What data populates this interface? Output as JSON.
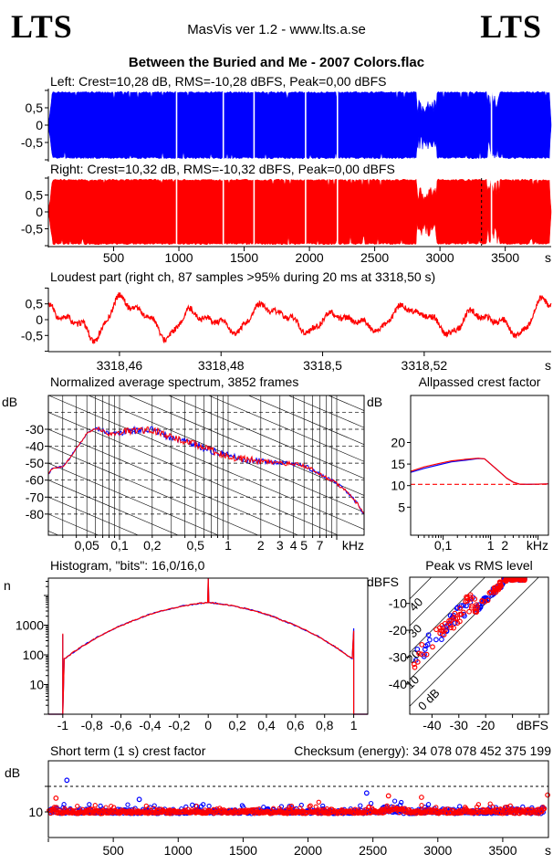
{
  "header": {
    "logo_left": "LTS",
    "logo_right": "LTS",
    "version_line": "MasVis ver 1.2 - www.lts.a.se"
  },
  "title": "Between the Buried and Me - 2007 Colors.flac",
  "colors": {
    "left_channel": "#0000ff",
    "right_channel": "#ff0000",
    "axis": "#000000",
    "background": "#ffffff"
  },
  "chart_data": [
    {
      "id": "waveform-left",
      "type": "waveform",
      "channel": "Left",
      "label": "Left: Crest=10,28 dB, RMS=-10,28 dBFS, Peak=0,00 dBFS",
      "crest_db": "10,28",
      "rms_dbfs": "-10,28",
      "peak_dbfs": "0,00",
      "color": "#0000ff",
      "seed": 11,
      "duration_s": 3852,
      "peak_amplitude": 0.97,
      "yticks": [
        {
          "v": 0.5,
          "label": "0,5"
        },
        {
          "v": 0,
          "label": "0"
        },
        {
          "v": -0.5,
          "label": "-0,5"
        }
      ],
      "gaps_s": [
        982,
        1340,
        1576,
        1971,
        2215,
        3395
      ],
      "quiet_regions": [
        {
          "start_s": 2818,
          "end_s": 2972,
          "amp": 0.62
        },
        {
          "start_s": 3356,
          "end_s": 3454,
          "amp": 0.85
        }
      ],
      "fade_in_s": 28,
      "fade_out_start_s": 3840
    },
    {
      "id": "waveform-right",
      "type": "waveform",
      "channel": "Right",
      "label": "Right: Crest=10,32 dB, RMS=-10,32 dBFS, Peak=0,00 dBFS",
      "crest_db": "10,32",
      "rms_dbfs": "-10,32",
      "peak_dbfs": "0,00",
      "color": "#ff0000",
      "seed": 22,
      "duration_s": 3852,
      "peak_amplitude": 0.97,
      "marker_s": 3318.5,
      "yticks": [
        {
          "v": 0.5,
          "label": "0,5"
        },
        {
          "v": 0,
          "label": "0"
        },
        {
          "v": -0.5,
          "label": "-0,5"
        }
      ],
      "xticks": [
        {
          "v": 500,
          "label": "500"
        },
        {
          "v": 1000,
          "label": "1000"
        },
        {
          "v": 1500,
          "label": "1500"
        },
        {
          "v": 2000,
          "label": "2000"
        },
        {
          "v": 2500,
          "label": "2500"
        },
        {
          "v": 3000,
          "label": "3000"
        },
        {
          "v": 3500,
          "label": "3500"
        }
      ],
      "xunit": "s",
      "gaps_s": [
        982,
        1340,
        1576,
        1971,
        2215,
        3395
      ],
      "quiet_regions": [
        {
          "start_s": 2818,
          "end_s": 2972,
          "amp": 0.62
        },
        {
          "start_s": 3356,
          "end_s": 3454,
          "amp": 0.85
        }
      ],
      "fade_in_s": 28,
      "fade_out_start_s": 3840
    },
    {
      "id": "loudest-part",
      "type": "line",
      "title": "Loudest part (right ch, 87 samples >95% during 20 ms at 3318,50 s)",
      "color": "#ff0000",
      "seed": 33,
      "t_start_s": 3318.446,
      "t_end_s": 3318.545,
      "yticks": [
        {
          "v": 0.5,
          "label": "0,5"
        },
        {
          "v": 0,
          "label": "0"
        },
        {
          "v": -0.5,
          "label": "-0,5"
        }
      ],
      "xticks": [
        {
          "v": 3318.46,
          "label": "3318,46"
        },
        {
          "v": 3318.48,
          "label": "3318,48"
        },
        {
          "v": 3318.5,
          "label": "3318,5"
        },
        {
          "v": 3318.52,
          "label": "3318,52"
        }
      ],
      "xunit": "s",
      "components": [
        {
          "freq_hz": 72,
          "amp": 0.5,
          "phase": 0.8
        },
        {
          "freq_hz": 144,
          "amp": 0.22,
          "phase": 2.1
        },
        {
          "freq_hz": 36,
          "amp": 0.2,
          "phase": 4.4
        },
        {
          "freq_hz": 290,
          "amp": 0.12,
          "phase": 1.2
        }
      ],
      "noise": 0.09
    },
    {
      "id": "spectrum",
      "type": "line",
      "title": "Normalized average spectrum, 3852 frames",
      "ylabel": "dB",
      "xunit": "kHz",
      "xticks": [
        {
          "v": 0.05,
          "label": "0,05"
        },
        {
          "v": 0.1,
          "label": "0,1"
        },
        {
          "v": 0.2,
          "label": "0,2"
        },
        {
          "v": 0.5,
          "label": "0,5"
        },
        {
          "v": 1,
          "label": "1"
        },
        {
          "v": 2,
          "label": "2"
        },
        {
          "v": 3,
          "label": "3"
        },
        {
          "v": 4,
          "label": "4"
        },
        {
          "v": 5,
          "label": "5"
        },
        {
          "v": 7,
          "label": "7"
        }
      ],
      "yticks": [
        {
          "v": -30,
          "label": "-30"
        },
        {
          "v": -40,
          "label": "-40"
        },
        {
          "v": -50,
          "label": "-50"
        },
        {
          "v": -60,
          "label": "-60"
        },
        {
          "v": -70,
          "label": "-70"
        },
        {
          "v": -80,
          "label": "-80"
        }
      ],
      "points_khz_db": [
        [
          0.02,
          -61
        ],
        [
          0.024,
          -53
        ],
        [
          0.03,
          -52
        ],
        [
          0.035,
          -47
        ],
        [
          0.04,
          -41
        ],
        [
          0.045,
          -37
        ],
        [
          0.05,
          -32.5
        ],
        [
          0.055,
          -31
        ],
        [
          0.06,
          -29.5
        ],
        [
          0.07,
          -30.5
        ],
        [
          0.08,
          -33
        ],
        [
          0.09,
          -32.5
        ],
        [
          0.1,
          -32
        ],
        [
          0.12,
          -31
        ],
        [
          0.15,
          -30.5
        ],
        [
          0.2,
          -30
        ],
        [
          0.25,
          -33
        ],
        [
          0.3,
          -35
        ],
        [
          0.4,
          -37
        ],
        [
          0.5,
          -39
        ],
        [
          0.6,
          -41
        ],
        [
          0.7,
          -42.5
        ],
        [
          0.8,
          -44
        ],
        [
          1,
          -45.5
        ],
        [
          1.2,
          -47
        ],
        [
          1.5,
          -48
        ],
        [
          2,
          -48.5
        ],
        [
          2.5,
          -49.5
        ],
        [
          3,
          -50
        ],
        [
          4,
          -50.5
        ],
        [
          5,
          -51.5
        ],
        [
          6,
          -54
        ],
        [
          7,
          -56.5
        ],
        [
          8,
          -58.5
        ],
        [
          9,
          -60
        ],
        [
          10,
          -62
        ],
        [
          12,
          -66
        ],
        [
          14,
          -70.5
        ],
        [
          16,
          -75
        ],
        [
          18,
          -80.5
        ]
      ],
      "noise_db": 2.2,
      "series": [
        {
          "name": "left",
          "color": "#0000ff",
          "seed": 44
        },
        {
          "name": "right",
          "color": "#ff0000",
          "seed": 55
        }
      ]
    },
    {
      "id": "allpassed-crest",
      "type": "line",
      "title": "Allpassed crest factor",
      "ylabel": "dB",
      "xunit": "kHz",
      "xticks": [
        {
          "v": 0.1,
          "label": "0,1"
        },
        {
          "v": 1,
          "label": "1"
        },
        {
          "v": 2,
          "label": "2"
        }
      ],
      "yticks": [
        {
          "v": 5,
          "label": "5"
        },
        {
          "v": 10,
          "label": "10"
        },
        {
          "v": 15,
          "label": "15"
        },
        {
          "v": 20,
          "label": "20"
        }
      ],
      "reference_db": 10.3,
      "series": [
        {
          "name": "left",
          "color": "#0000ff",
          "points": [
            [
              0.021,
              13.1
            ],
            [
              0.04,
              14.0
            ],
            [
              0.08,
              14.8
            ],
            [
              0.15,
              15.5
            ],
            [
              0.3,
              15.9
            ],
            [
              0.55,
              16.3
            ],
            [
              0.75,
              16.2
            ],
            [
              1,
              15.0
            ],
            [
              1.5,
              13.3
            ],
            [
              2.2,
              11.7
            ],
            [
              3,
              10.8
            ],
            [
              4,
              10.35
            ],
            [
              6,
              10.3
            ],
            [
              16.5,
              10.4
            ]
          ]
        },
        {
          "name": "right",
          "color": "#ff0000",
          "points": [
            [
              0.021,
              13.35
            ],
            [
              0.04,
              14.35
            ],
            [
              0.08,
              15.1
            ],
            [
              0.15,
              15.75
            ],
            [
              0.3,
              16.1
            ],
            [
              0.55,
              16.35
            ],
            [
              0.75,
              16.2
            ],
            [
              1,
              15.0
            ],
            [
              1.5,
              13.3
            ],
            [
              2.2,
              11.7
            ],
            [
              3,
              10.8
            ],
            [
              4,
              10.35
            ],
            [
              6,
              10.3
            ],
            [
              16.5,
              10.4
            ]
          ]
        }
      ]
    },
    {
      "id": "histogram",
      "type": "line",
      "title": "Histogram, \"bits\": 16,0/16,0",
      "ylabel": "n",
      "yticks": [
        {
          "v": 10,
          "label": "10"
        },
        {
          "v": 100,
          "label": "100"
        },
        {
          "v": 1000,
          "label": "1000"
        }
      ],
      "xticks": [
        {
          "v": -1,
          "label": "-1"
        },
        {
          "v": -0.8,
          "label": "-0,8"
        },
        {
          "v": -0.6,
          "label": "-0,6"
        },
        {
          "v": -0.4,
          "label": "-0,4"
        },
        {
          "v": -0.2,
          "label": "-0,2"
        },
        {
          "v": 0,
          "label": "0"
        },
        {
          "v": 0.2,
          "label": "0,2"
        },
        {
          "v": 0.4,
          "label": "0,4"
        },
        {
          "v": 0.6,
          "label": "0,6"
        },
        {
          "v": 0.8,
          "label": "0,8"
        },
        {
          "v": 1,
          "label": "1"
        }
      ],
      "dome_abs_x_count": [
        [
          0,
          5900
        ],
        [
          0.1,
          5100
        ],
        [
          0.2,
          4200
        ],
        [
          0.3,
          3200
        ],
        [
          0.4,
          2300
        ],
        [
          0.5,
          1500
        ],
        [
          0.6,
          950
        ],
        [
          0.7,
          560
        ],
        [
          0.8,
          300
        ],
        [
          0.85,
          215
        ],
        [
          0.9,
          150
        ],
        [
          0.95,
          100
        ],
        [
          0.98,
          80
        ],
        [
          1,
          75
        ]
      ],
      "spikes": [
        {
          "x": -1,
          "left": 480,
          "right": 520
        },
        {
          "x": 0,
          "left": 40000,
          "right": 40000
        },
        {
          "x": 1,
          "left": 780,
          "right": 650
        }
      ],
      "series": [
        {
          "name": "left",
          "color": "#0000ff",
          "seed": 66
        },
        {
          "name": "right",
          "color": "#ff0000",
          "seed": 77
        }
      ]
    },
    {
      "id": "peak-vs-rms",
      "type": "scatter",
      "title": "Peak vs RMS level",
      "ylabel": "dBFS",
      "xunit": "dBFS",
      "xticks": [
        {
          "v": -40,
          "label": "-40"
        },
        {
          "v": -30,
          "label": "-30"
        },
        {
          "v": -20,
          "label": "-20"
        }
      ],
      "yticks": [
        {
          "v": -10,
          "label": "-10"
        },
        {
          "v": -20,
          "label": "-20"
        },
        {
          "v": -30,
          "label": "-30"
        },
        {
          "v": -40,
          "label": "-40"
        }
      ],
      "diagonals": [
        {
          "crest_db": 40,
          "label": "40"
        },
        {
          "crest_db": 30,
          "label": "30"
        },
        {
          "crest_db": 20,
          "label": "20"
        },
        {
          "crest_db": 10,
          "label": "10"
        },
        {
          "crest_db": 0,
          "label": "0 dB"
        }
      ],
      "series": [
        {
          "name": "left",
          "color": "#0000ff",
          "seed": 88,
          "count": 140
        },
        {
          "name": "right",
          "color": "#ff0000",
          "seed": 99,
          "count": 155
        }
      ]
    },
    {
      "id": "short-term-crest",
      "type": "scatter",
      "title": "Short term (1 s) crest factor",
      "checksum_label": "Checksum (energy): 34 078 078 452 375 199",
      "ylabel": "dB",
      "yticks": [
        {
          "v": 10,
          "label": "10"
        }
      ],
      "xticks": [
        {
          "v": 500,
          "label": "500"
        },
        {
          "v": 1000,
          "label": "1000"
        },
        {
          "v": 1500,
          "label": "1500"
        },
        {
          "v": 2000,
          "label": "2000"
        },
        {
          "v": 2500,
          "label": "2500"
        },
        {
          "v": 3000,
          "label": "3000"
        },
        {
          "v": 3500,
          "label": "3500"
        }
      ],
      "xunit": "s",
      "reference_db": 20,
      "series": [
        {
          "name": "left",
          "color": "#0000ff",
          "seed": 111,
          "count": 650,
          "outliers": [
            [
              143,
              22.4
            ],
            [
              700,
              14.9
            ],
            [
              2452,
              17.4
            ]
          ]
        },
        {
          "name": "right",
          "color": "#ff0000",
          "seed": 222,
          "count": 700,
          "outliers": [
            [
              58,
              15.4
            ],
            [
              2620,
              16.3
            ],
            [
              2874,
              15.7
            ],
            [
              3846,
              16.6
            ]
          ]
        }
      ]
    }
  ]
}
